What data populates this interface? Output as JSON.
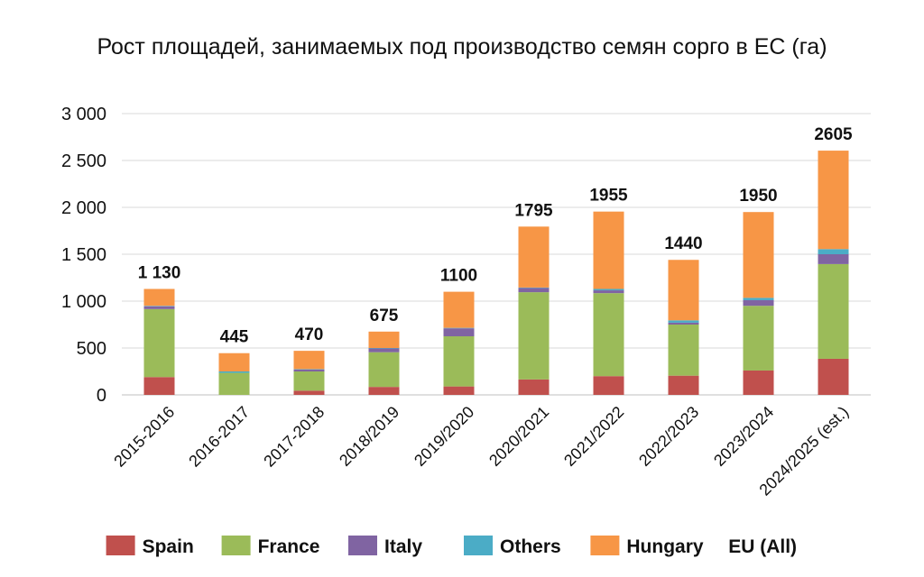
{
  "chart_data": {
    "type": "bar",
    "stacked": true,
    "title": "Рост площадей, занимаемых под производство семян сорго в ЕС (га)",
    "categories": [
      "2015-2016",
      "2016-2017",
      "2017-2018",
      "2018/2019",
      "2019/2020",
      "2020/2021",
      "2021/2022",
      "2022/2023",
      "2023/2024",
      "2024/2025 (est.)"
    ],
    "series": [
      {
        "name": "Spain",
        "color": "#c0504d",
        "values": [
          190,
          0,
          45,
          85,
          90,
          165,
          200,
          205,
          260,
          385
        ]
      },
      {
        "name": "France",
        "color": "#9bbb59",
        "values": [
          725,
          235,
          205,
          370,
          535,
          930,
          885,
          545,
          690,
          1010
        ]
      },
      {
        "name": "Italy",
        "color": "#8064a2",
        "values": [
          30,
          0,
          20,
          40,
          85,
          45,
          30,
          20,
          60,
          105
        ]
      },
      {
        "name": "Others",
        "color": "#4bacc6",
        "values": [
          5,
          15,
          5,
          5,
          5,
          5,
          15,
          25,
          25,
          55
        ]
      },
      {
        "name": "Hungary",
        "color": "#f79646",
        "values": [
          180,
          195,
          195,
          175,
          385,
          650,
          825,
          645,
          915,
          1050
        ]
      }
    ],
    "totals_label": "EU (All)",
    "totals": [
      "1 130",
      "445",
      "470",
      "675",
      "1100",
      "1795",
      "1955",
      "1440",
      "1950",
      "2605"
    ],
    "yticks": [
      "0",
      "500",
      "1 000",
      "1 500",
      "2 000",
      "2 500",
      "3 000"
    ],
    "ylim": [
      0,
      3000
    ],
    "grid": true,
    "legend_position": "bottom"
  }
}
